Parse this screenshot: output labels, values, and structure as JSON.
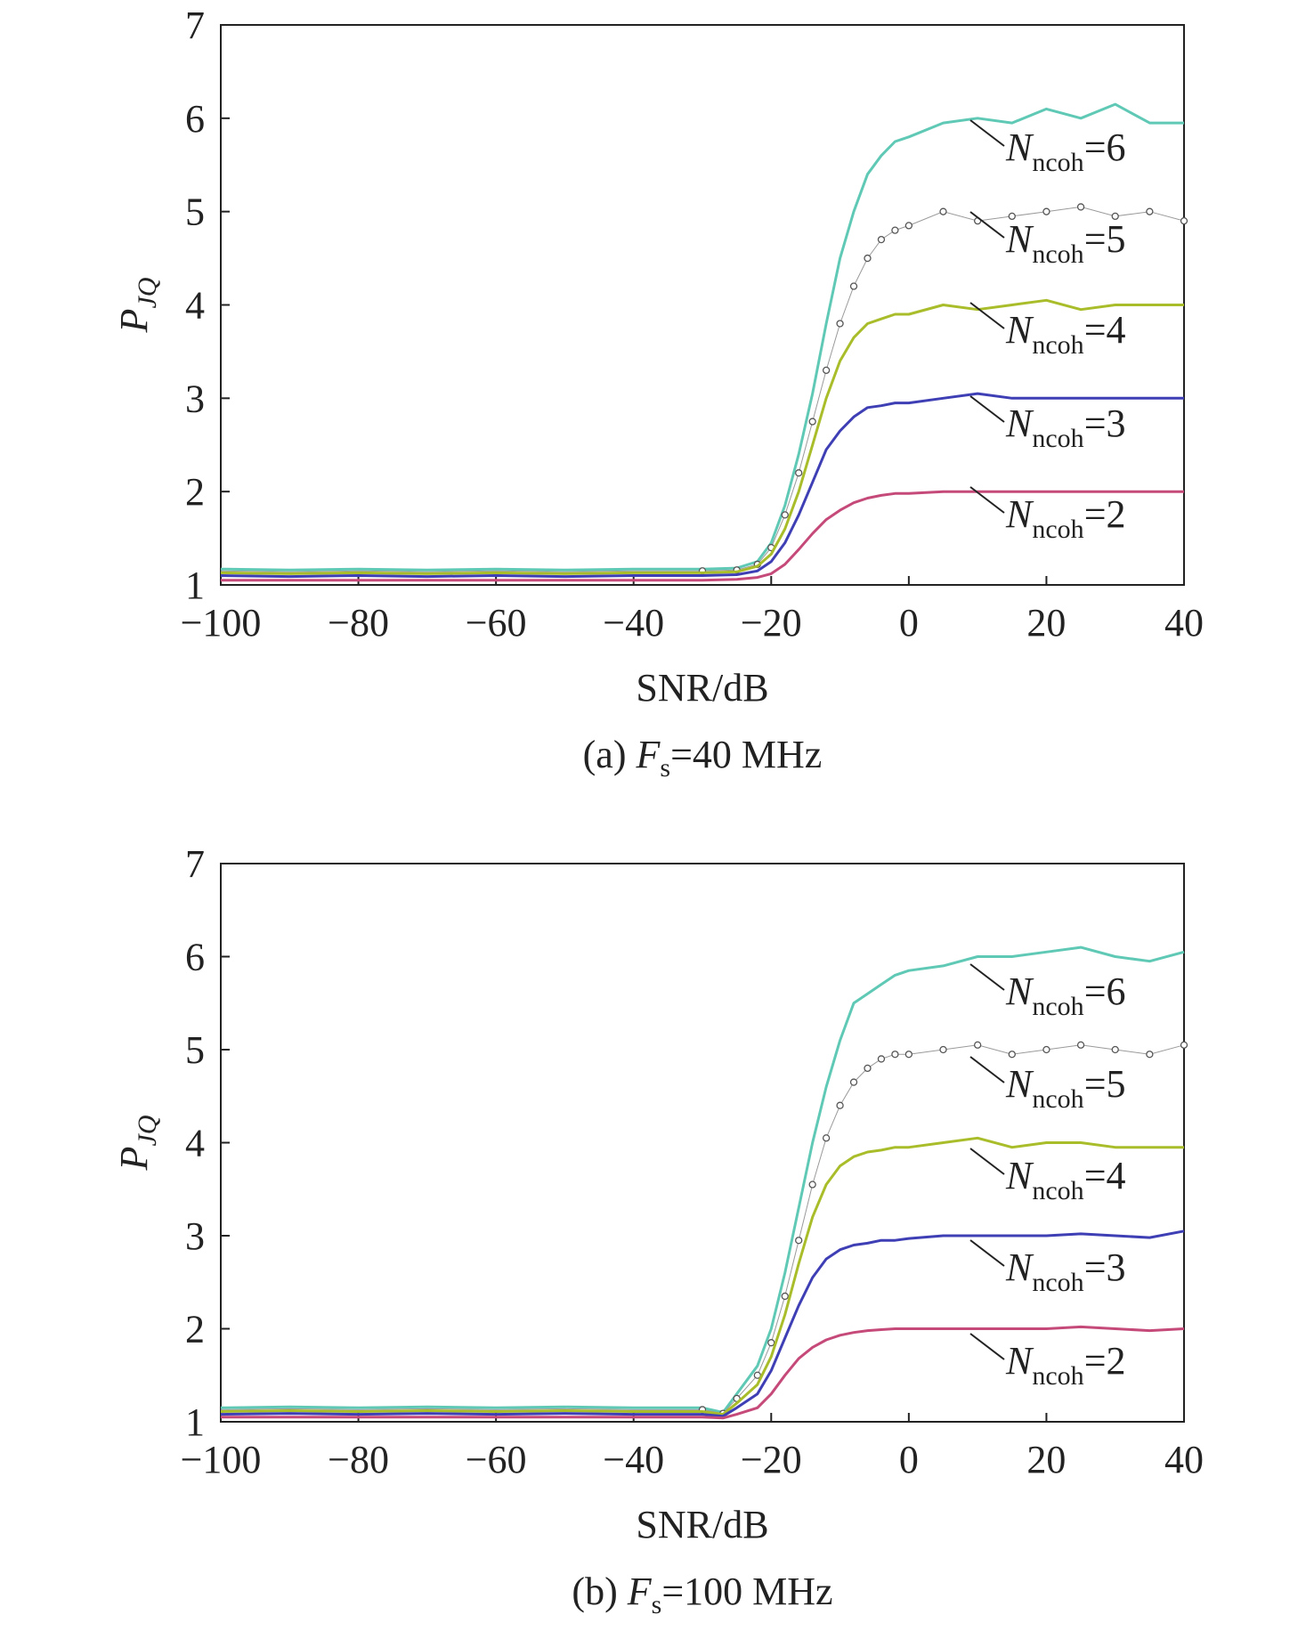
{
  "figure": {
    "panels": [
      {
        "caption_prefix": "(a) ",
        "caption_var": "F",
        "caption_sub": "s",
        "caption_rest": "=40 MHz"
      },
      {
        "caption_prefix": "(b) ",
        "caption_var": "F",
        "caption_sub": "s",
        "caption_rest": "=100 MHz"
      }
    ]
  },
  "chart_data": [
    {
      "type": "line",
      "caption": "(a) Fs=40 MHz",
      "xlabel": "SNR/dB",
      "ylabel": "P_JQ",
      "ylabel_main": "P",
      "ylabel_sub": "JQ",
      "xlim": [
        -100,
        40
      ],
      "ylim": [
        1,
        7
      ],
      "xticks": [
        -100,
        -80,
        -60,
        -40,
        -20,
        0,
        20,
        40
      ],
      "yticks": [
        1,
        2,
        3,
        4,
        5,
        6,
        7
      ],
      "x": [
        -100,
        -90,
        -80,
        -70,
        -60,
        -50,
        -40,
        -30,
        -25,
        -22,
        -20,
        -18,
        -16,
        -14,
        -12,
        -10,
        -8,
        -6,
        -4,
        -2,
        0,
        5,
        10,
        15,
        20,
        25,
        30,
        35,
        40
      ],
      "series": [
        {
          "label_main": "N",
          "label_sub": "ncoh",
          "label_rest": "=6",
          "name": "Nncoh=6",
          "color": "#5fc9b6",
          "marker": "none",
          "values": [
            1.17,
            1.16,
            1.17,
            1.16,
            1.17,
            1.16,
            1.17,
            1.17,
            1.18,
            1.25,
            1.45,
            1.85,
            2.4,
            3.05,
            3.8,
            4.5,
            5.0,
            5.4,
            5.6,
            5.75,
            5.8,
            5.95,
            6.0,
            5.95,
            6.1,
            6.0,
            6.15,
            5.95,
            5.95
          ]
        },
        {
          "label_main": "N",
          "label_sub": "ncoh",
          "label_rest": "=5",
          "name": "Nncoh=5",
          "color": "#555555",
          "marker": "circle",
          "values": [
            1.15,
            1.14,
            1.15,
            1.14,
            1.15,
            1.14,
            1.15,
            1.15,
            1.16,
            1.22,
            1.4,
            1.75,
            2.2,
            2.75,
            3.3,
            3.8,
            4.2,
            4.5,
            4.7,
            4.8,
            4.85,
            5.0,
            4.9,
            4.95,
            5.0,
            5.05,
            4.95,
            5.0,
            4.9
          ]
        },
        {
          "label_main": "N",
          "label_sub": "ncoh",
          "label_rest": "=4",
          "name": "Nncoh=4",
          "color": "#a9bd2a",
          "marker": "none",
          "values": [
            1.13,
            1.12,
            1.13,
            1.12,
            1.13,
            1.12,
            1.13,
            1.13,
            1.14,
            1.2,
            1.33,
            1.6,
            2.0,
            2.5,
            3.0,
            3.4,
            3.65,
            3.8,
            3.85,
            3.9,
            3.9,
            4.0,
            3.95,
            4.0,
            4.05,
            3.95,
            4.0,
            4.0,
            4.0
          ]
        },
        {
          "label_main": "N",
          "label_sub": "ncoh",
          "label_rest": "=3",
          "name": "Nncoh=3",
          "color": "#3f3fb5",
          "marker": "none",
          "values": [
            1.1,
            1.09,
            1.1,
            1.09,
            1.1,
            1.09,
            1.1,
            1.1,
            1.11,
            1.15,
            1.25,
            1.45,
            1.75,
            2.1,
            2.45,
            2.65,
            2.8,
            2.9,
            2.92,
            2.95,
            2.95,
            3.0,
            3.05,
            3.0,
            3.0,
            3.0,
            3.0,
            3.0,
            3.0
          ]
        },
        {
          "label_main": "N",
          "label_sub": "ncoh",
          "label_rest": "=2",
          "name": "Nncoh=2",
          "color": "#c54a7a",
          "marker": "none",
          "values": [
            1.05,
            1.05,
            1.05,
            1.05,
            1.05,
            1.05,
            1.05,
            1.05,
            1.06,
            1.08,
            1.12,
            1.22,
            1.38,
            1.55,
            1.7,
            1.8,
            1.88,
            1.93,
            1.96,
            1.98,
            1.98,
            2.0,
            2.0,
            2.0,
            2.0,
            2.0,
            2.0,
            2.0,
            2.0
          ]
        }
      ]
    },
    {
      "type": "line",
      "caption": "(b) Fs=100 MHz",
      "xlabel": "SNR/dB",
      "ylabel": "P_JQ",
      "ylabel_main": "P",
      "ylabel_sub": "JQ",
      "xlim": [
        -100,
        40
      ],
      "ylim": [
        1,
        7
      ],
      "xticks": [
        -100,
        -80,
        -60,
        -40,
        -20,
        0,
        20,
        40
      ],
      "yticks": [
        1,
        2,
        3,
        4,
        5,
        6,
        7
      ],
      "x": [
        -100,
        -90,
        -80,
        -70,
        -60,
        -50,
        -40,
        -30,
        -27,
        -25,
        -22,
        -20,
        -18,
        -16,
        -14,
        -12,
        -10,
        -8,
        -6,
        -4,
        -2,
        0,
        5,
        10,
        15,
        20,
        25,
        30,
        35,
        40
      ],
      "series": [
        {
          "label_main": "N",
          "label_sub": "ncoh",
          "label_rest": "=6",
          "name": "Nncoh=6",
          "color": "#5fc9b6",
          "marker": "none",
          "values": [
            1.15,
            1.16,
            1.15,
            1.16,
            1.15,
            1.16,
            1.15,
            1.15,
            1.1,
            1.3,
            1.6,
            2.0,
            2.6,
            3.3,
            4.0,
            4.6,
            5.1,
            5.5,
            5.6,
            5.7,
            5.8,
            5.85,
            5.9,
            6.0,
            6.0,
            6.05,
            6.1,
            6.0,
            5.95,
            6.05
          ]
        },
        {
          "label_main": "N",
          "label_sub": "ncoh",
          "label_rest": "=5",
          "name": "Nncoh=5",
          "color": "#555555",
          "marker": "circle",
          "values": [
            1.13,
            1.14,
            1.13,
            1.14,
            1.13,
            1.14,
            1.13,
            1.13,
            1.09,
            1.25,
            1.5,
            1.85,
            2.35,
            2.95,
            3.55,
            4.05,
            4.4,
            4.65,
            4.8,
            4.9,
            4.95,
            4.95,
            5.0,
            5.05,
            4.95,
            5.0,
            5.05,
            5.0,
            4.95,
            5.05
          ]
        },
        {
          "label_main": "N",
          "label_sub": "ncoh",
          "label_rest": "=4",
          "name": "Nncoh=4",
          "color": "#a9bd2a",
          "marker": "none",
          "values": [
            1.11,
            1.12,
            1.11,
            1.12,
            1.11,
            1.12,
            1.11,
            1.11,
            1.08,
            1.2,
            1.4,
            1.7,
            2.15,
            2.7,
            3.2,
            3.55,
            3.75,
            3.85,
            3.9,
            3.92,
            3.95,
            3.95,
            4.0,
            4.05,
            3.95,
            4.0,
            4.0,
            3.95,
            3.95,
            3.95
          ]
        },
        {
          "label_main": "N",
          "label_sub": "ncoh",
          "label_rest": "=3",
          "name": "Nncoh=3",
          "color": "#3f3fb5",
          "marker": "none",
          "values": [
            1.08,
            1.09,
            1.08,
            1.09,
            1.08,
            1.09,
            1.08,
            1.08,
            1.06,
            1.15,
            1.3,
            1.55,
            1.9,
            2.25,
            2.55,
            2.75,
            2.85,
            2.9,
            2.92,
            2.95,
            2.95,
            2.97,
            3.0,
            3.0,
            3.0,
            3.0,
            3.02,
            3.0,
            2.98,
            3.05
          ]
        },
        {
          "label_main": "N",
          "label_sub": "ncoh",
          "label_rest": "=2",
          "name": "Nncoh=2",
          "color": "#c54a7a",
          "marker": "none",
          "values": [
            1.05,
            1.05,
            1.05,
            1.05,
            1.05,
            1.05,
            1.05,
            1.05,
            1.04,
            1.08,
            1.15,
            1.3,
            1.5,
            1.68,
            1.8,
            1.88,
            1.93,
            1.96,
            1.98,
            1.99,
            2.0,
            2.0,
            2.0,
            2.0,
            2.0,
            2.0,
            2.02,
            2.0,
            1.98,
            2.0
          ]
        }
      ]
    }
  ]
}
